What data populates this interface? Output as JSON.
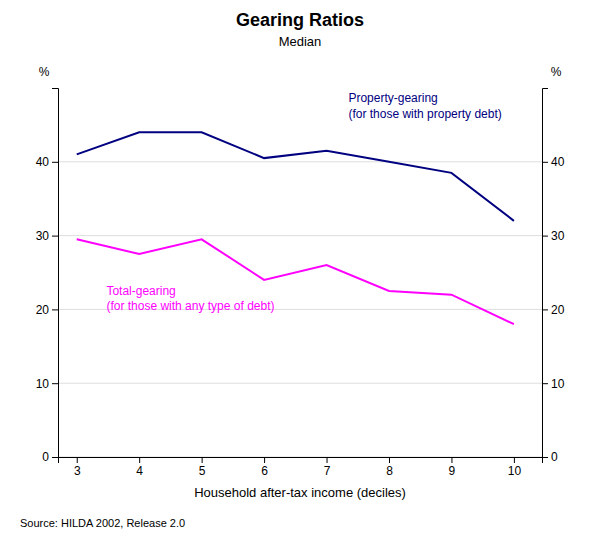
{
  "chart_data": {
    "type": "line",
    "title": "Gearing Ratios",
    "subtitle": "Median",
    "x_label": "Household after-tax income (deciles)",
    "y_label": "%",
    "y2_label": "%",
    "source": "Source: HILDA 2002, Release 2.0",
    "x": [
      3,
      4,
      5,
      6,
      7,
      8,
      9,
      10
    ],
    "series": [
      {
        "color": "#000080",
        "values": [
          41,
          44,
          44,
          40.5,
          41.5,
          40,
          38.5,
          32
        ]
      },
      {
        "color": "#FF00FF",
        "values": [
          29.5,
          27.5,
          29.5,
          24,
          26,
          22.5,
          22,
          18
        ]
      }
    ],
    "annotations": [
      [
        "Property-gearing",
        "(for those with property debt)"
      ],
      [
        "Total-gearing",
        "(for those with any type of debt)"
      ]
    ],
    "xlim": [
      2.7,
      10.45
    ],
    "xticks": [
      3,
      4,
      5,
      6,
      7,
      8,
      9,
      10
    ],
    "ylim": [
      0,
      50
    ],
    "yticks": [
      0,
      10,
      20,
      30,
      40
    ],
    "y2lim": [
      0,
      50
    ],
    "y2ticks": [
      0,
      10,
      20,
      30,
      40
    ],
    "grid": true
  }
}
